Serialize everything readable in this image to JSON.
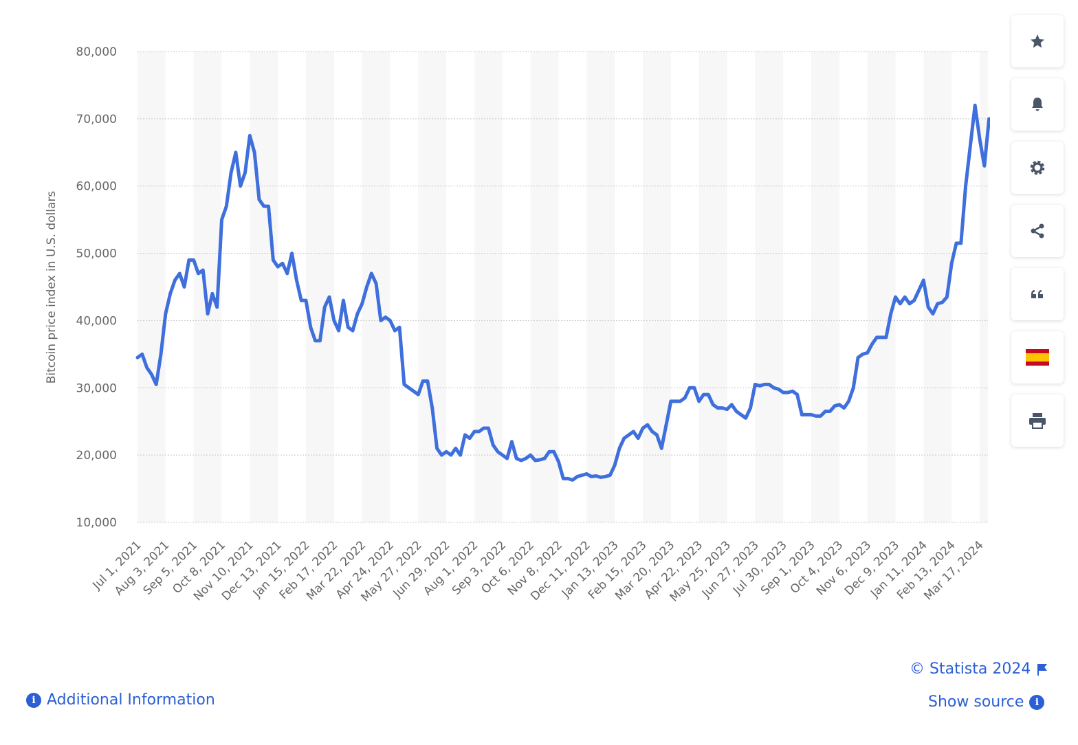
{
  "chart_data": {
    "type": "line",
    "y_axis_label": "Bitcoin price index in U.S. dollars",
    "color": "#3f6fdc",
    "grid": true,
    "ylim": [
      10000,
      80000
    ],
    "yticks": [
      {
        "value": 10000,
        "label": "10,000"
      },
      {
        "value": 20000,
        "label": "20,000"
      },
      {
        "value": 30000,
        "label": "30,000"
      },
      {
        "value": 40000,
        "label": "40,000"
      },
      {
        "value": 50000,
        "label": "50,000"
      },
      {
        "value": 60000,
        "label": "60,000"
      },
      {
        "value": 70000,
        "label": "70,000"
      },
      {
        "value": 80000,
        "label": "80,000"
      }
    ],
    "categories": [
      "Jul 1, 2021",
      null,
      null,
      null,
      null,
      null,
      "Aug 3, 2021",
      null,
      null,
      null,
      null,
      null,
      "Sep 5, 2021",
      null,
      null,
      null,
      null,
      null,
      "Oct 8, 2021",
      null,
      null,
      null,
      null,
      null,
      "Nov 10, 2021",
      null,
      null,
      null,
      null,
      null,
      "Dec 13, 2021",
      null,
      null,
      null,
      null,
      null,
      "Jan 15, 2022",
      null,
      null,
      null,
      null,
      null,
      "Feb 17, 2022",
      null,
      null,
      null,
      null,
      null,
      "Mar 22, 2022",
      null,
      null,
      null,
      null,
      null,
      "Apr 24, 2022",
      null,
      null,
      null,
      null,
      null,
      "May 27, 2022",
      null,
      null,
      null,
      null,
      null,
      "Jun 29, 2022",
      null,
      null,
      null,
      null,
      null,
      "Aug 1, 2022",
      null,
      null,
      null,
      null,
      null,
      "Sep 3, 2022",
      null,
      null,
      null,
      null,
      null,
      "Oct 6, 2022",
      null,
      null,
      null,
      null,
      null,
      "Nov 8, 2022",
      null,
      null,
      null,
      null,
      null,
      "Dec 11, 2022",
      null,
      null,
      null,
      null,
      null,
      "Jan 13, 2023",
      null,
      null,
      null,
      null,
      null,
      "Feb 15, 2023",
      null,
      null,
      null,
      null,
      null,
      "Mar 20, 2023",
      null,
      null,
      null,
      null,
      null,
      "Apr 22, 2023",
      null,
      null,
      null,
      null,
      null,
      "May 25, 2023",
      null,
      null,
      null,
      null,
      null,
      "Jun 27, 2023",
      null,
      null,
      null,
      null,
      null,
      "Jul 30, 2023",
      null,
      null,
      null,
      null,
      null,
      "Sep 1, 2023",
      null,
      null,
      null,
      null,
      null,
      "Oct 4, 2023",
      null,
      null,
      null,
      null,
      null,
      "Nov 6, 2023",
      null,
      null,
      null,
      null,
      null,
      "Dec 9, 2023",
      null,
      null,
      null,
      null,
      null,
      "Jan 11, 2024",
      null,
      null,
      null,
      null,
      null,
      "Feb 13, 2024",
      null,
      null,
      null,
      null,
      null,
      "Mar 17, 2024",
      null,
      null
    ],
    "values": [
      34500,
      35000,
      33000,
      32000,
      30500,
      35000,
      41000,
      44000,
      46000,
      47000,
      45000,
      49000,
      49000,
      47000,
      47500,
      41000,
      44000,
      42000,
      55000,
      57000,
      62000,
      65000,
      60000,
      62000,
      67500,
      65000,
      58000,
      57000,
      57000,
      49000,
      48000,
      48500,
      47000,
      50000,
      46000,
      43000,
      43000,
      39000,
      37000,
      37000,
      42000,
      43500,
      40000,
      38500,
      43000,
      39000,
      38500,
      41000,
      42500,
      45000,
      47000,
      45500,
      40000,
      40500,
      40000,
      38500,
      39000,
      30500,
      30000,
      29500,
      29000,
      31000,
      31000,
      27000,
      21000,
      20000,
      20500,
      20000,
      21000,
      20000,
      23000,
      22500,
      23500,
      23500,
      24000,
      24000,
      21500,
      20500,
      20000,
      19500,
      22000,
      19500,
      19200,
      19500,
      20000,
      19200,
      19300,
      19500,
      20500,
      20500,
      19000,
      16500,
      16500,
      16300,
      16800,
      17000,
      17200,
      16800,
      16900,
      16700,
      16800,
      17000,
      18500,
      21000,
      22500,
      23000,
      23500,
      22500,
      24000,
      24500,
      23500,
      23000,
      21000,
      24500,
      28000,
      28000,
      28000,
      28500,
      30000,
      30000,
      28000,
      29000,
      29000,
      27500,
      27000,
      27000,
      26800,
      27500,
      26500,
      26000,
      25500,
      27000,
      30500,
      30300,
      30500,
      30500,
      30000,
      29800,
      29300,
      29300,
      29500,
      29000,
      26000,
      26000,
      26000,
      25800,
      25800,
      26500,
      26500,
      27300,
      27500,
      27000,
      28000,
      30000,
      34500,
      35000,
      35200,
      36500,
      37500,
      37500,
      37500,
      41000,
      43500,
      42500,
      43500,
      42500,
      43000,
      44500,
      46000,
      42000,
      41000,
      42500,
      42700,
      43500,
      48500,
      51500,
      51500,
      60000,
      66000,
      72000,
      67000,
      63000,
      70000
    ]
  },
  "footer": {
    "copyright": "© Statista 2024",
    "show_source": "Show source",
    "additional_information": "Additional Information"
  }
}
